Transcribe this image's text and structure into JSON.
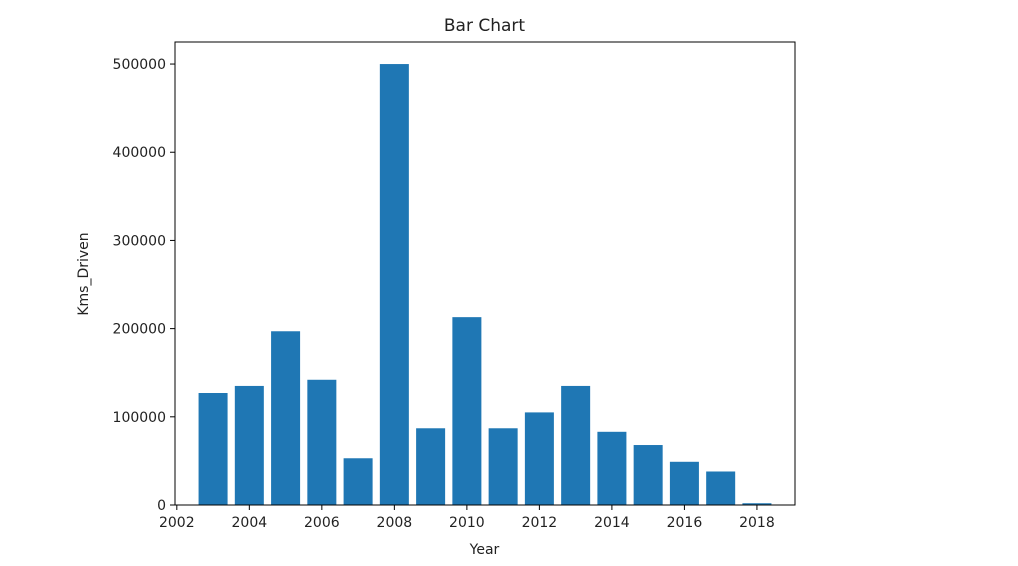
{
  "chart_data": {
    "type": "bar",
    "title": "Bar Chart",
    "xlabel": "Year",
    "ylabel": "Kms_Driven",
    "x": [
      2003,
      2004,
      2005,
      2006,
      2007,
      2008,
      2009,
      2010,
      2011,
      2012,
      2013,
      2014,
      2015,
      2016,
      2017,
      2018
    ],
    "values": [
      127000,
      135000,
      197000,
      142000,
      53000,
      500000,
      87000,
      213000,
      87000,
      105000,
      135000,
      83000,
      68000,
      49000,
      38000,
      2000
    ],
    "xlim": [
      2001.95,
      2019.05
    ],
    "ylim": [
      0,
      525000
    ],
    "xticks": [
      2002,
      2004,
      2006,
      2008,
      2010,
      2012,
      2014,
      2016,
      2018
    ],
    "yticks": [
      0,
      100000,
      200000,
      300000,
      400000,
      500000
    ],
    "bar_color": "#1f77b4",
    "grid": false,
    "legend": "none"
  }
}
